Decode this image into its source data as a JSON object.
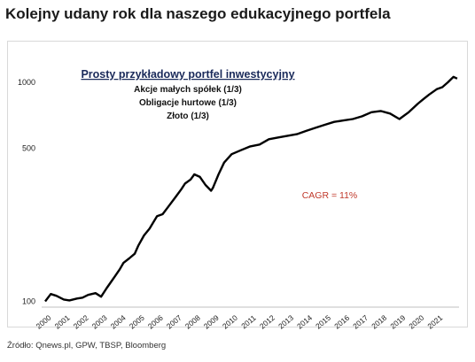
{
  "headline": "Kolejny udany rok dla naszego edukacyjnego portfela",
  "source": "Źródło: Qnews.pl, GPW, TBSP, Bloomberg",
  "chart_data": {
    "type": "line",
    "scale": "log",
    "title": "Prosty przykładowy portfel inwestycyjny",
    "subtitle_lines": [
      "Akcje małych spółek (1/3)",
      "Obligacje hurtowe (1/3)",
      "Złoto (1/3)"
    ],
    "annotation": "CAGR = 11%",
    "yticks": [
      100,
      500,
      1000
    ],
    "ylim": [
      95,
      1150
    ],
    "xlim": [
      2000,
      2022.2
    ],
    "xticks": [
      "2000",
      "2001",
      "2002",
      "2003",
      "2004",
      "2005",
      "2006",
      "2007",
      "2008",
      "2009",
      "2010",
      "2011",
      "2012",
      "2013",
      "2014",
      "2015",
      "2016",
      "2017",
      "2018",
      "2019",
      "2020",
      "2021"
    ],
    "grid": false,
    "legend": "none",
    "colors": {
      "line": "#000000",
      "annotation": "#c0392b",
      "title": "#1a2a5a"
    },
    "x": [
      2000.0,
      2000.3,
      2000.6,
      2001.0,
      2001.3,
      2001.7,
      2002.0,
      2002.3,
      2002.7,
      2003.0,
      2003.3,
      2003.6,
      2004.0,
      2004.2,
      2004.5,
      2004.8,
      2005.0,
      2005.3,
      2005.6,
      2006.0,
      2006.3,
      2006.6,
      2007.0,
      2007.3,
      2007.5,
      2007.8,
      2008.0,
      2008.3,
      2008.6,
      2008.9,
      2009.0,
      2009.3,
      2009.6,
      2010.0,
      2010.5,
      2011.0,
      2011.5,
      2012.0,
      2012.5,
      2013.0,
      2013.5,
      2014.0,
      2014.5,
      2015.0,
      2015.5,
      2016.0,
      2016.5,
      2017.0,
      2017.5,
      2018.0,
      2018.5,
      2019.0,
      2019.5,
      2020.0,
      2020.3,
      2020.6,
      2021.0,
      2021.3,
      2021.6,
      2021.9,
      2022.1
    ],
    "values": [
      100,
      108,
      106,
      102,
      101,
      103,
      104,
      107,
      109,
      105,
      115,
      125,
      140,
      150,
      157,
      165,
      180,
      200,
      215,
      245,
      250,
      270,
      300,
      325,
      345,
      360,
      380,
      370,
      340,
      320,
      330,
      380,
      430,
      470,
      490,
      510,
      520,
      550,
      560,
      570,
      580,
      600,
      620,
      640,
      660,
      670,
      680,
      700,
      730,
      740,
      720,
      680,
      730,
      800,
      840,
      880,
      930,
      950,
      1000,
      1060,
      1040
    ]
  }
}
